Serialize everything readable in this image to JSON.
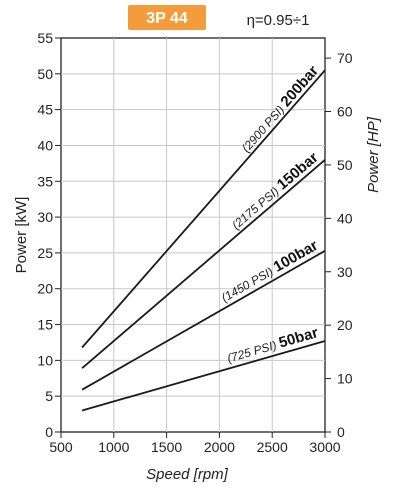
{
  "badge": {
    "text": "3P 44",
    "color": "#f39c3c"
  },
  "efficiency": "η=0.95÷1",
  "chart_data": {
    "type": "line",
    "xlabel": "Speed [rpm]",
    "ylabel": "Power [kW]",
    "y2label": "Power [HP]",
    "xlim": [
      500,
      3000
    ],
    "ylim": [
      0,
      55
    ],
    "y2lim": [
      0,
      73.76
    ],
    "xticks": [
      500,
      1000,
      1500,
      2000,
      2500,
      3000
    ],
    "yticks": [
      0,
      5,
      10,
      15,
      20,
      25,
      30,
      35,
      40,
      45,
      50,
      55
    ],
    "y2ticks": [
      0,
      10,
      20,
      30,
      40,
      50,
      60,
      70
    ],
    "grid": true,
    "series": [
      {
        "name": "200bar",
        "label_psi": "(2900 PSI)",
        "label_bar": "200bar",
        "x": [
          700,
          3000
        ],
        "y": [
          11.8,
          50.5
        ]
      },
      {
        "name": "150bar",
        "label_psi": "(2175 PSI)",
        "label_bar": "150bar",
        "x": [
          700,
          3000
        ],
        "y": [
          8.9,
          38.0
        ]
      },
      {
        "name": "100bar",
        "label_psi": "(1450 PSI)",
        "label_bar": "100bar",
        "x": [
          700,
          3000
        ],
        "y": [
          5.9,
          25.3
        ]
      },
      {
        "name": "50bar",
        "label_psi": "(725 PSI)",
        "label_bar": "50bar",
        "x": [
          700,
          3000
        ],
        "y": [
          3.0,
          12.7
        ]
      }
    ]
  }
}
